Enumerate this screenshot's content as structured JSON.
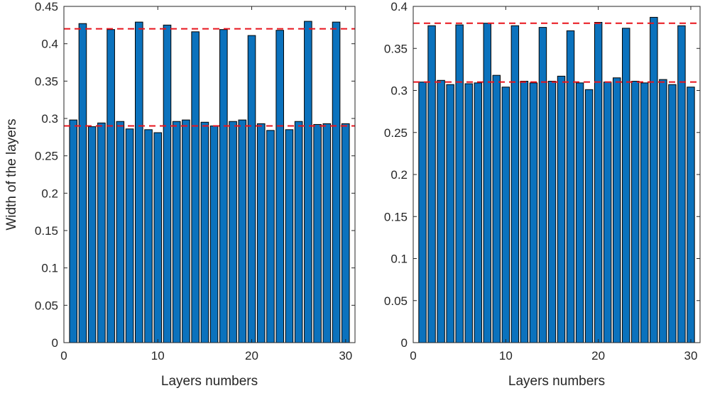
{
  "chart_data": [
    {
      "type": "bar",
      "title": "",
      "xlabel": "Layers numbers",
      "ylabel": "Width of the layers",
      "xlim": [
        0,
        31
      ],
      "ylim": [
        0,
        0.45
      ],
      "x_ticks": [
        "0",
        "10",
        "20",
        "30"
      ],
      "y_ticks": [
        "0",
        "0.05",
        "0.1",
        "0.15",
        "0.2",
        "0.25",
        "0.3",
        "0.35",
        "0.4",
        "0.45"
      ],
      "categories": [
        1,
        2,
        3,
        4,
        5,
        6,
        7,
        8,
        9,
        10,
        11,
        12,
        13,
        14,
        15,
        16,
        17,
        18,
        19,
        20,
        21,
        22,
        23,
        24,
        25,
        26,
        27,
        28,
        29,
        30
      ],
      "values": [
        0.298,
        0.427,
        0.289,
        0.294,
        0.419,
        0.296,
        0.286,
        0.429,
        0.285,
        0.281,
        0.425,
        0.296,
        0.298,
        0.416,
        0.295,
        0.29,
        0.419,
        0.296,
        0.298,
        0.411,
        0.293,
        0.284,
        0.418,
        0.285,
        0.296,
        0.43,
        0.292,
        0.293,
        0.429,
        0.293
      ],
      "reference_lines": [
        0.42,
        0.29
      ],
      "bar_color": "#0b72bd",
      "reference_line_color": "#e8141c",
      "grid": false,
      "legend": "none"
    },
    {
      "type": "bar",
      "title": "",
      "xlabel": "Layers numbers",
      "ylabel": "",
      "xlim": [
        0,
        31
      ],
      "ylim": [
        0,
        0.4
      ],
      "x_ticks": [
        "0",
        "10",
        "20",
        "30"
      ],
      "y_ticks": [
        "0",
        "0.05",
        "0.1",
        "0.15",
        "0.2",
        "0.25",
        "0.3",
        "0.35",
        "0.4"
      ],
      "categories": [
        1,
        2,
        3,
        4,
        5,
        6,
        7,
        8,
        9,
        10,
        11,
        12,
        13,
        14,
        15,
        16,
        17,
        18,
        19,
        20,
        21,
        22,
        23,
        24,
        25,
        26,
        27,
        28,
        29,
        30
      ],
      "values": [
        0.31,
        0.377,
        0.312,
        0.307,
        0.378,
        0.308,
        0.309,
        0.38,
        0.318,
        0.304,
        0.377,
        0.311,
        0.309,
        0.375,
        0.311,
        0.317,
        0.371,
        0.309,
        0.301,
        0.381,
        0.31,
        0.315,
        0.374,
        0.311,
        0.309,
        0.387,
        0.313,
        0.307,
        0.377,
        0.304
      ],
      "reference_lines": [
        0.38,
        0.31
      ],
      "bar_color": "#0b72bd",
      "reference_line_color": "#e8141c",
      "grid": false,
      "legend": "none"
    }
  ]
}
